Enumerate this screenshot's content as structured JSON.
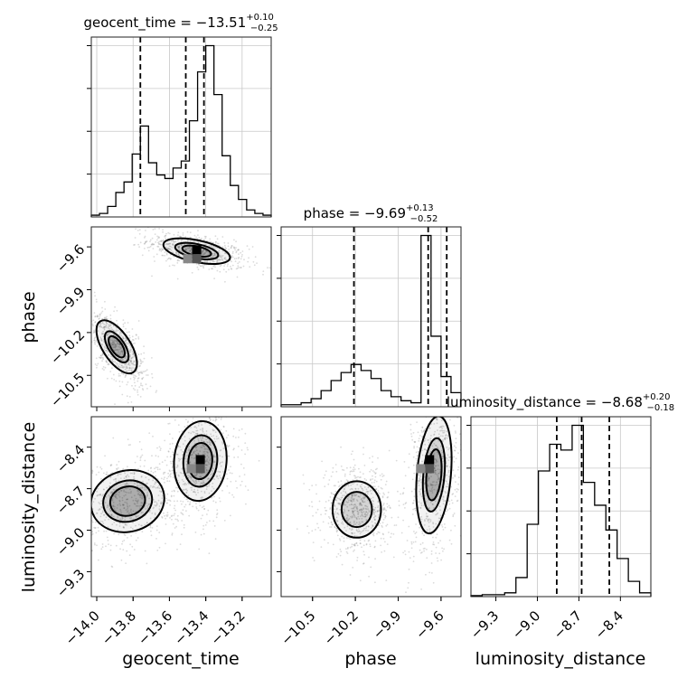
{
  "chart_data": {
    "type": "corner",
    "parameters": [
      "geocent_time",
      "phase",
      "luminosity_distance"
    ],
    "axis_labels": {
      "x": [
        "geocent_time",
        "phase",
        "luminosity_distance"
      ],
      "y": [
        "phase",
        "luminosity_distance"
      ]
    },
    "diagonal_titles": [
      {
        "name": "geocent_time",
        "median": "−13.51",
        "upper": "+0.10",
        "lower": "−0.25"
      },
      {
        "name": "phase",
        "median": "−9.69",
        "upper": "+0.13",
        "lower": "−0.52"
      },
      {
        "name": "luminosity_distance",
        "median": "−8.68",
        "upper": "+0.20",
        "lower": "−0.18"
      }
    ],
    "ranges": [
      [
        -14.03,
        -13.04
      ],
      [
        -10.72,
        -9.46
      ],
      [
        -9.48,
        -8.18
      ]
    ],
    "ticks": [
      {
        "values": [
          -14.0,
          -13.8,
          -13.6,
          -13.4,
          -13.2
        ],
        "labels": [
          "−14.0",
          "−13.8",
          "−13.6",
          "−13.4",
          "−13.2"
        ]
      },
      {
        "values": [
          -10.5,
          -10.2,
          -9.9,
          -9.6
        ],
        "labels": [
          "−10.5",
          "−10.2",
          "−9.9",
          "−9.6"
        ]
      },
      {
        "values": [
          -9.3,
          -9.0,
          -8.7,
          -8.4
        ],
        "labels": [
          "−9.3",
          "−9.0",
          "−8.7",
          "−8.4"
        ]
      }
    ],
    "quantiles": [
      [
        -13.76,
        -13.51,
        -13.41
      ],
      [
        -10.21,
        -9.69,
        -9.56
      ],
      [
        -8.86,
        -8.68,
        -8.48
      ]
    ],
    "histograms": [
      {
        "param": "geocent_time",
        "counts": [
          1,
          2,
          6,
          14,
          20,
          36,
          52,
          31,
          24,
          22,
          28,
          32,
          55,
          83,
          98,
          70,
          35,
          18,
          10,
          4,
          2,
          1
        ]
      },
      {
        "param": "phase",
        "counts": [
          1,
          1,
          2,
          4,
          8,
          13,
          17,
          21,
          18,
          14,
          8,
          5,
          3,
          2,
          85,
          35,
          15,
          7
        ]
      },
      {
        "param": "luminosity_distance",
        "counts": [
          0.5,
          1,
          1,
          2,
          10,
          38,
          66,
          80,
          77,
          90,
          60,
          48,
          35,
          20,
          8,
          2
        ]
      }
    ],
    "contours_2d": [
      {
        "x": "geocent_time",
        "y": "phase",
        "modes": [
          {
            "center": [
              -13.45,
              -9.63
            ],
            "sx": 0.11,
            "sy": 0.045,
            "angle": -12,
            "levels": [
              1.0,
              1.55,
              2.3
            ]
          },
          {
            "center": [
              -13.89,
              -10.3
            ],
            "sx": 0.045,
            "sy": 0.125,
            "angle": 33,
            "levels": [
              1.0,
              1.7,
              2.5
            ]
          }
        ],
        "density_peak": [
          -13.45,
          -9.62
        ]
      },
      {
        "x": "geocent_time",
        "y": "luminosity_distance",
        "modes": [
          {
            "center": [
              -13.83,
              -8.79
            ],
            "sx": 0.12,
            "sy": 0.13,
            "angle": 15,
            "levels": [
              1.0,
              1.5,
              2.1
            ]
          },
          {
            "center": [
              -13.43,
              -8.5
            ],
            "sx": 0.085,
            "sy": 0.17,
            "angle": -5,
            "levels": [
              1.0,
              1.55,
              2.2
            ]
          }
        ],
        "density_peak": [
          -13.43,
          -8.49
        ]
      },
      {
        "x": "phase",
        "y": "luminosity_distance",
        "modes": [
          {
            "center": [
              -10.19,
              -8.85
            ],
            "sx": 0.1,
            "sy": 0.12,
            "angle": 0,
            "levels": [
              1.0,
              1.6
            ]
          },
          {
            "center": [
              -9.65,
              -8.6
            ],
            "sx": 0.07,
            "sy": 0.25,
            "angle": -5,
            "levels": [
              1.0,
              1.6,
              2.3
            ]
          }
        ],
        "density_peak": [
          -9.68,
          -8.49
        ]
      }
    ],
    "grid": true,
    "colors": {
      "line": "#000000",
      "points": "#7f7f7f",
      "grid": "#c8c8c8"
    }
  }
}
